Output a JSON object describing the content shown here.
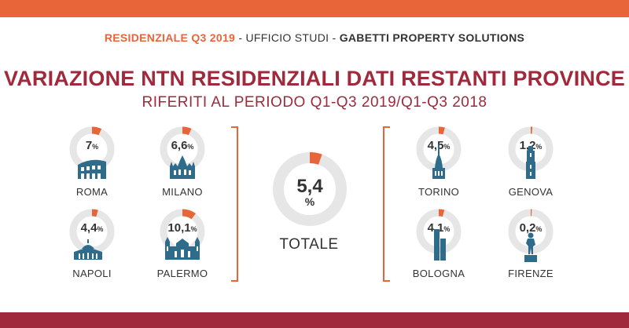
{
  "header": {
    "highlight": "RESIDENZIALE Q3 2019",
    "separator1": "-",
    "office": "UFFICIO STUDI",
    "separator2": "-",
    "company": "GABETTI PROPERTY SOLUTIONS"
  },
  "title": "VARIAZIONE NTN RESIDENZIALI DATI RESTANTI PROVINCE",
  "subtitle": "RIFERITI AL PERIODO Q1-Q3 2019/Q1-Q3 2018",
  "colors": {
    "accent": "#e8653a",
    "brand": "#a02a3c",
    "ring": "#e6e6e6",
    "icon": "#2f6b8a"
  },
  "total": {
    "value": "5,4",
    "unit": "%",
    "percent": 5.4,
    "label": "TOTALE"
  },
  "cities": [
    {
      "name": "ROMA",
      "value": "7",
      "unit": "%",
      "percent": 7,
      "icon": "colosseum-icon"
    },
    {
      "name": "MILANO",
      "value": "6,6",
      "unit": "%",
      "percent": 6.6,
      "icon": "duomo-milano-icon"
    },
    {
      "name": "NAPOLI",
      "value": "4,4",
      "unit": "%",
      "percent": 4.4,
      "icon": "basilica-icon"
    },
    {
      "name": "PALERMO",
      "value": "10,1",
      "unit": "%",
      "percent": 10.1,
      "icon": "cathedral-palermo-icon"
    },
    {
      "name": "TORINO",
      "value": "4,5",
      "unit": "%",
      "percent": 4.5,
      "icon": "mole-antonelliana-icon"
    },
    {
      "name": "GENOVA",
      "value": "1,2",
      "unit": "%",
      "percent": 1.2,
      "icon": "lanterna-icon"
    },
    {
      "name": "BOLOGNA",
      "value": "4,1",
      "unit": "%",
      "percent": 4.1,
      "icon": "two-towers-icon"
    },
    {
      "name": "FIRENZE",
      "value": "0,2",
      "unit": "%",
      "percent": 0.2,
      "icon": "david-statue-icon"
    }
  ]
}
